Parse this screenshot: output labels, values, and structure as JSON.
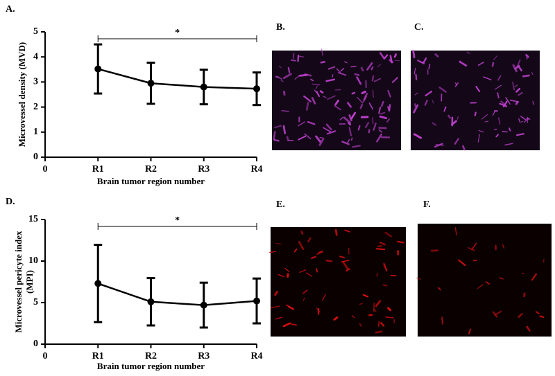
{
  "chart_data": [
    {
      "type": "line",
      "label": "A.",
      "y_label": [
        "Microvessel density (MVD)"
      ],
      "x_label": "Brain tumor region number",
      "x": [
        1,
        2,
        3,
        4
      ],
      "values": [
        3.52,
        2.95,
        2.8,
        2.73
      ],
      "errors": [
        0.98,
        0.82,
        0.69,
        0.65
      ],
      "xlim": [
        0,
        4
      ],
      "xticks": [
        0,
        {
          "value": 1,
          "label": "R1"
        },
        {
          "value": 2,
          "label": "R2"
        },
        {
          "value": 3,
          "label": "R3"
        },
        {
          "value": 4,
          "label": "R4"
        }
      ],
      "ylim": [
        0,
        5
      ],
      "yticks": [
        0,
        1,
        2,
        3,
        4,
        5
      ],
      "color": "#000000",
      "annotation": "*"
    },
    {
      "type": "line",
      "label": "D.",
      "y_label": [
        "Microvessel pericyte index",
        "(MPI)"
      ],
      "x_label": "Brain tumor region number",
      "x": [
        1,
        2,
        3,
        4
      ],
      "values": [
        7.3,
        5.1,
        4.7,
        5.2
      ],
      "errors": [
        4.65,
        2.85,
        2.7,
        2.7
      ],
      "xlim": [
        0,
        4
      ],
      "xticks": [
        0,
        {
          "value": 1,
          "label": "R1"
        },
        {
          "value": 2,
          "label": "R2"
        },
        {
          "value": 3,
          "label": "R3"
        },
        {
          "value": 4,
          "label": "R4"
        }
      ],
      "ylim": [
        0,
        15
      ],
      "yticks": [
        0,
        5,
        10,
        15
      ],
      "color": "#000000",
      "annotation": "*"
    }
  ],
  "images": [
    {
      "label": "B."
    },
    {
      "label": "C."
    },
    {
      "label": "E."
    },
    {
      "label": "F."
    }
  ]
}
